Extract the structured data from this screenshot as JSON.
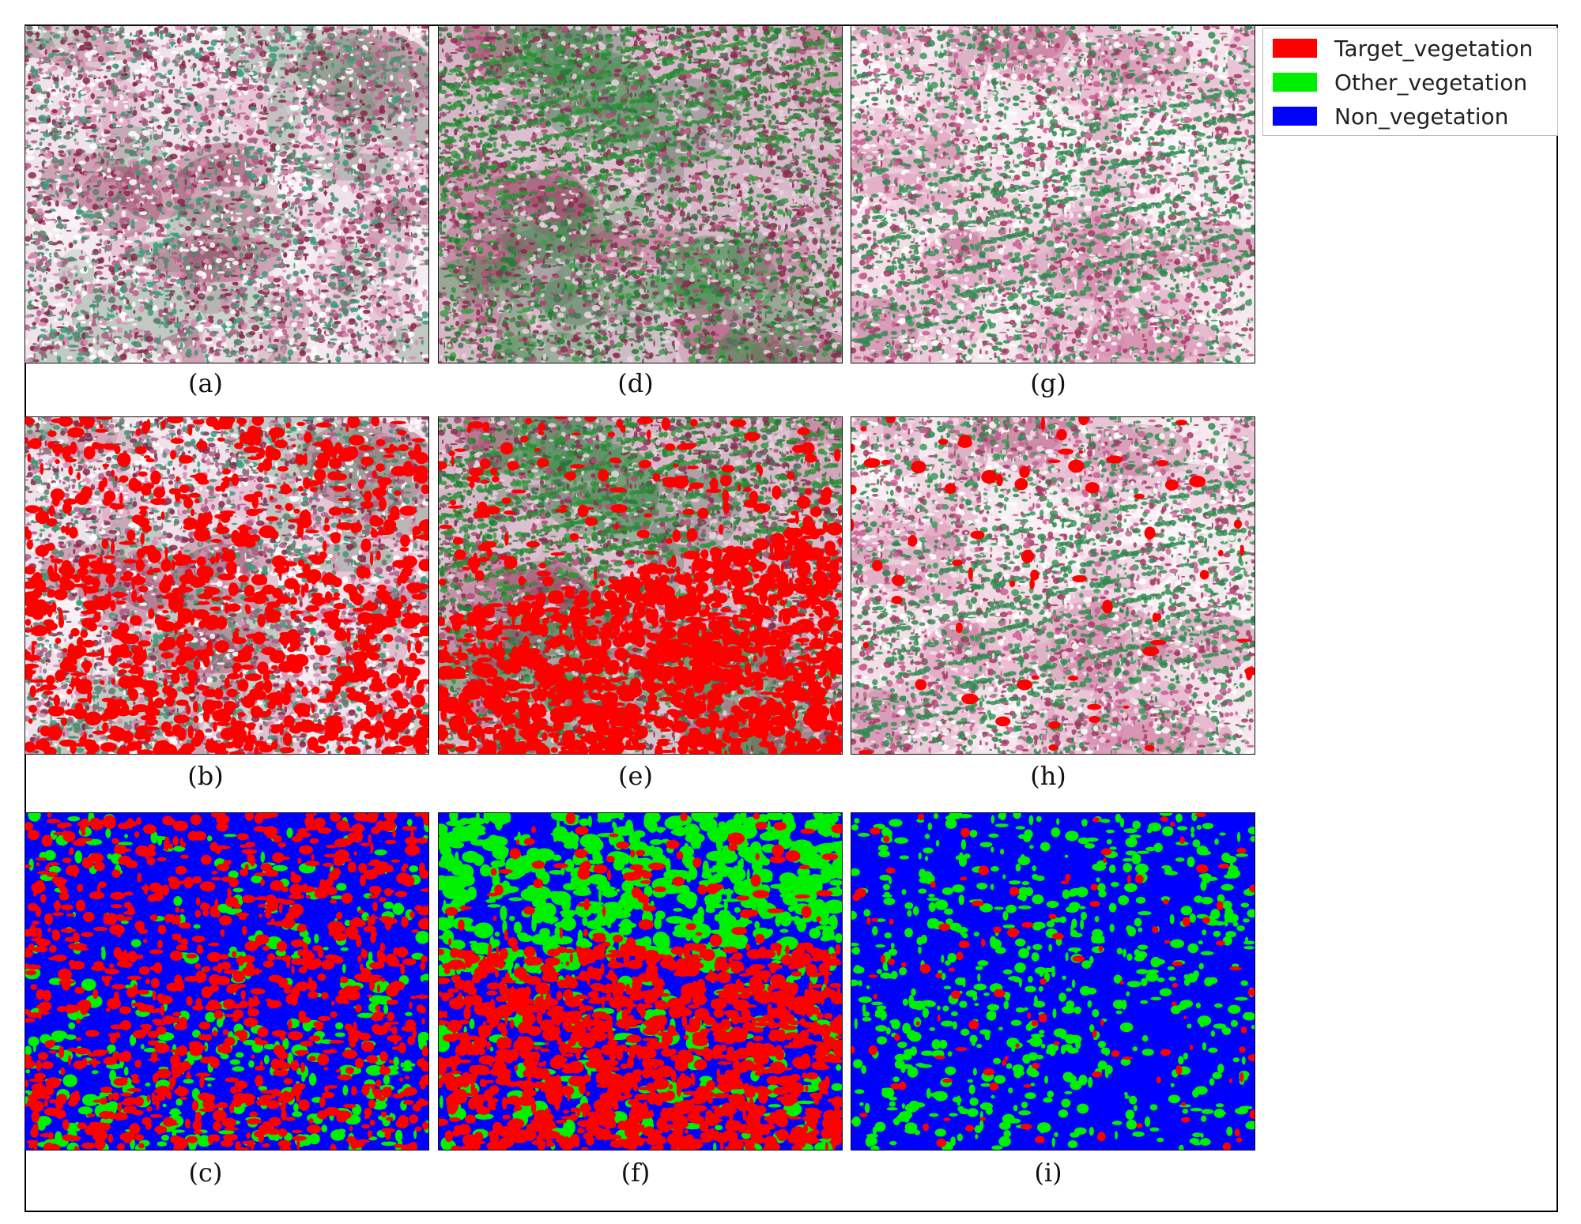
{
  "legend": {
    "items": [
      {
        "label": "Target_vegetation",
        "color": "#ff0000"
      },
      {
        "label": "Other_vegetation",
        "color": "#00ee00"
      },
      {
        "label": "Non_vegetation",
        "color": "#0000ff"
      }
    ]
  },
  "captions": {
    "a": "(a)",
    "b": "(b)",
    "c": "(c)",
    "d": "(d)",
    "e": "(e)",
    "f": "(f)",
    "g": "(g)",
    "h": "(h)",
    "i": "(i)"
  },
  "panels": {
    "a": {
      "kind": "false-color-image",
      "palette": [
        "#f6eef4",
        "#c9729d",
        "#3f9b76",
        "#8b2a4a"
      ]
    },
    "b": {
      "kind": "false-color-image-with-target-overlay",
      "overlay": "#ff0000"
    },
    "c": {
      "kind": "classification-map",
      "classes": [
        "Target_vegetation",
        "Other_vegetation",
        "Non_vegetation"
      ]
    },
    "d": {
      "kind": "false-color-image",
      "palette": [
        "#2f8f3a",
        "#b04a70",
        "#4f7a60",
        "#e8d2de"
      ]
    },
    "e": {
      "kind": "false-color-image-with-target-overlay",
      "overlay": "#ff0000"
    },
    "f": {
      "kind": "classification-map",
      "classes": [
        "Target_vegetation",
        "Other_vegetation",
        "Non_vegetation"
      ]
    },
    "g": {
      "kind": "false-color-image",
      "palette": [
        "#fbf3f7",
        "#cf7aa3",
        "#2e8a50",
        "#a23b63"
      ]
    },
    "h": {
      "kind": "false-color-image-with-target-overlay",
      "overlay": "#ff0000"
    },
    "i": {
      "kind": "classification-map",
      "classes": [
        "Target_vegetation",
        "Other_vegetation",
        "Non_vegetation"
      ]
    }
  }
}
